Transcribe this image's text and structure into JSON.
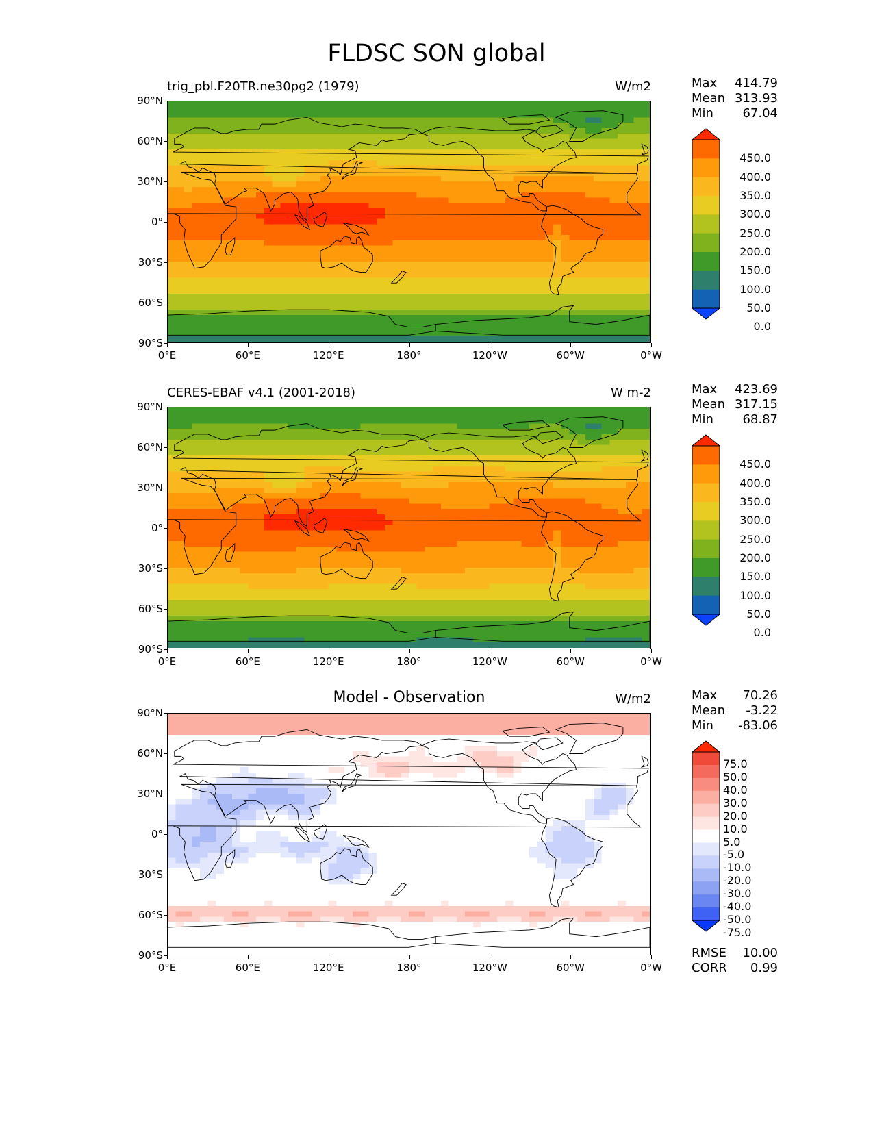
{
  "title": "FLDSC SON global",
  "lat_labels": [
    "90°N",
    "60°N",
    "30°N",
    "0°",
    "30°S",
    "60°S",
    "90°S"
  ],
  "lon_labels": [
    "0°E",
    "60°E",
    "120°E",
    "180°",
    "120°W",
    "60°W",
    "0°W"
  ],
  "panels": [
    {
      "id": "model",
      "title_left": "trig_pbl.F20TR.ne30pg2 (1979)",
      "title_center": "",
      "units": "W/m2",
      "stats": {
        "max_label": "Max",
        "max": "414.79",
        "mean_label": "Mean",
        "mean": "313.93",
        "min_label": "Min",
        "min": "67.04"
      },
      "colorbar": {
        "labels": [
          "450.0",
          "400.0",
          "350.0",
          "300.0",
          "250.0",
          "200.0",
          "150.0",
          "100.0",
          "50.0",
          "0.0"
        ],
        "colors": [
          "#ff2a00",
          "#ff6a00",
          "#ff9a0a",
          "#fbb81e",
          "#e8cc22",
          "#b2c21e",
          "#7fb21c",
          "#3f9a2a",
          "#2e7f6b",
          "#1462b4",
          "#0a42ff"
        ]
      },
      "field": "absolute"
    },
    {
      "id": "obs",
      "title_left": "CERES-EBAF v4.1 (2001-2018)",
      "title_center": "",
      "units": "W m-2",
      "stats": {
        "max_label": "Max",
        "max": "423.69",
        "mean_label": "Mean",
        "mean": "317.15",
        "min_label": "Min",
        "min": "68.87"
      },
      "colorbar": {
        "labels": [
          "450.0",
          "400.0",
          "350.0",
          "300.0",
          "250.0",
          "200.0",
          "150.0",
          "100.0",
          "50.0",
          "0.0"
        ],
        "colors": [
          "#ff2a00",
          "#ff6a00",
          "#ff9a0a",
          "#fbb81e",
          "#e8cc22",
          "#b2c21e",
          "#7fb21c",
          "#3f9a2a",
          "#2e7f6b",
          "#1462b4",
          "#0a42ff"
        ]
      },
      "field": "absolute"
    },
    {
      "id": "diff",
      "title_left": "",
      "title_center": "Model - Observation",
      "units": "W/m2",
      "stats": {
        "max_label": "Max",
        "max": "70.26",
        "mean_label": "Mean",
        "mean": "-3.22",
        "min_label": "Min",
        "min": "-83.06"
      },
      "colorbar": {
        "labels": [
          "75.0",
          "50.0",
          "40.0",
          "30.0",
          "20.0",
          "10.0",
          "5.0",
          "-5.0",
          "-10.0",
          "-20.0",
          "-30.0",
          "-40.0",
          "-50.0",
          "-75.0"
        ],
        "colors": [
          "#ff2a00",
          "#f04a3a",
          "#f46a5c",
          "#f88c7e",
          "#fbaea2",
          "#fdccc4",
          "#fee6e2",
          "#ffffff",
          "#e4e8fc",
          "#c8d2fa",
          "#aabaf6",
          "#8ca2f2",
          "#6a86f0",
          "#3f62f4",
          "#0a3aff"
        ]
      },
      "metrics": {
        "rmse_label": "RMSE",
        "rmse": "10.00",
        "corr_label": "CORR",
        "corr": "0.99"
      },
      "field": "difference"
    }
  ]
}
